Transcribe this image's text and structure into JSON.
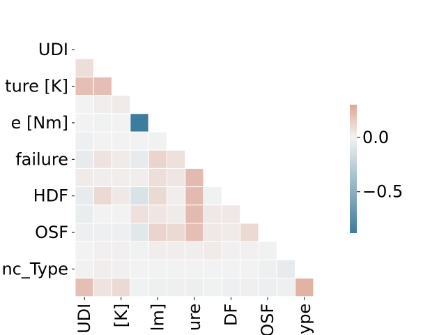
{
  "chart_data": {
    "type": "heatmap",
    "variant": "lower-triangle correlation matrix",
    "row_labels_visible": [
      "UDI",
      "ture [K]",
      "e [Nm]",
      "failure",
      "HDF",
      "OSF",
      "nc_Type"
    ],
    "col_labels_visible": [
      "UDI",
      "[K]",
      "lm]",
      "ure",
      "DF",
      "OSF",
      "ype"
    ],
    "colorbar": {
      "ticks": [
        0.0,
        -0.5
      ],
      "tick_labels": [
        "0.0",
        "−0.5"
      ],
      "range": [
        -0.88,
        0.3
      ],
      "colormap": "diverging blue-white-red"
    },
    "matrix_rows": [
      [],
      [
        0.08
      ],
      [
        0.2,
        0.2
      ],
      [
        0.0,
        0.02,
        0.03
      ],
      [
        0.0,
        -0.01,
        0.0,
        -0.88
      ],
      [
        -0.02,
        0.0,
        0.0,
        0.0,
        -0.01
      ],
      [
        -0.05,
        0.06,
        0.03,
        -0.05,
        0.12,
        0.07
      ],
      [
        0.03,
        0.02,
        0.02,
        0.02,
        0.08,
        0.05,
        0.22
      ],
      [
        -0.05,
        0.1,
        0.04,
        -0.12,
        0.1,
        0.02,
        0.22,
        -0.01
      ],
      [
        -0.04,
        0.0,
        0.0,
        0.07,
        0.05,
        0.03,
        0.22,
        0.04,
        0.04
      ],
      [
        -0.02,
        -0.02,
        -0.02,
        -0.08,
        0.12,
        0.1,
        0.2,
        0.04,
        0.03,
        0.1
      ],
      [
        0.0,
        0.01,
        0.01,
        -0.01,
        0.02,
        0.02,
        0.02,
        0.03,
        0.01,
        0.01,
        -0.01
      ],
      [
        -0.01,
        0.02,
        0.01,
        0.0,
        0.0,
        0.0,
        0.0,
        0.0,
        0.0,
        0.0,
        -0.02,
        -0.05
      ],
      [
        0.2,
        0.06,
        0.1,
        -0.01,
        -0.02,
        -0.02,
        -0.03,
        -0.01,
        -0.02,
        -0.02,
        -0.03,
        -0.02,
        0.25
      ]
    ]
  }
}
